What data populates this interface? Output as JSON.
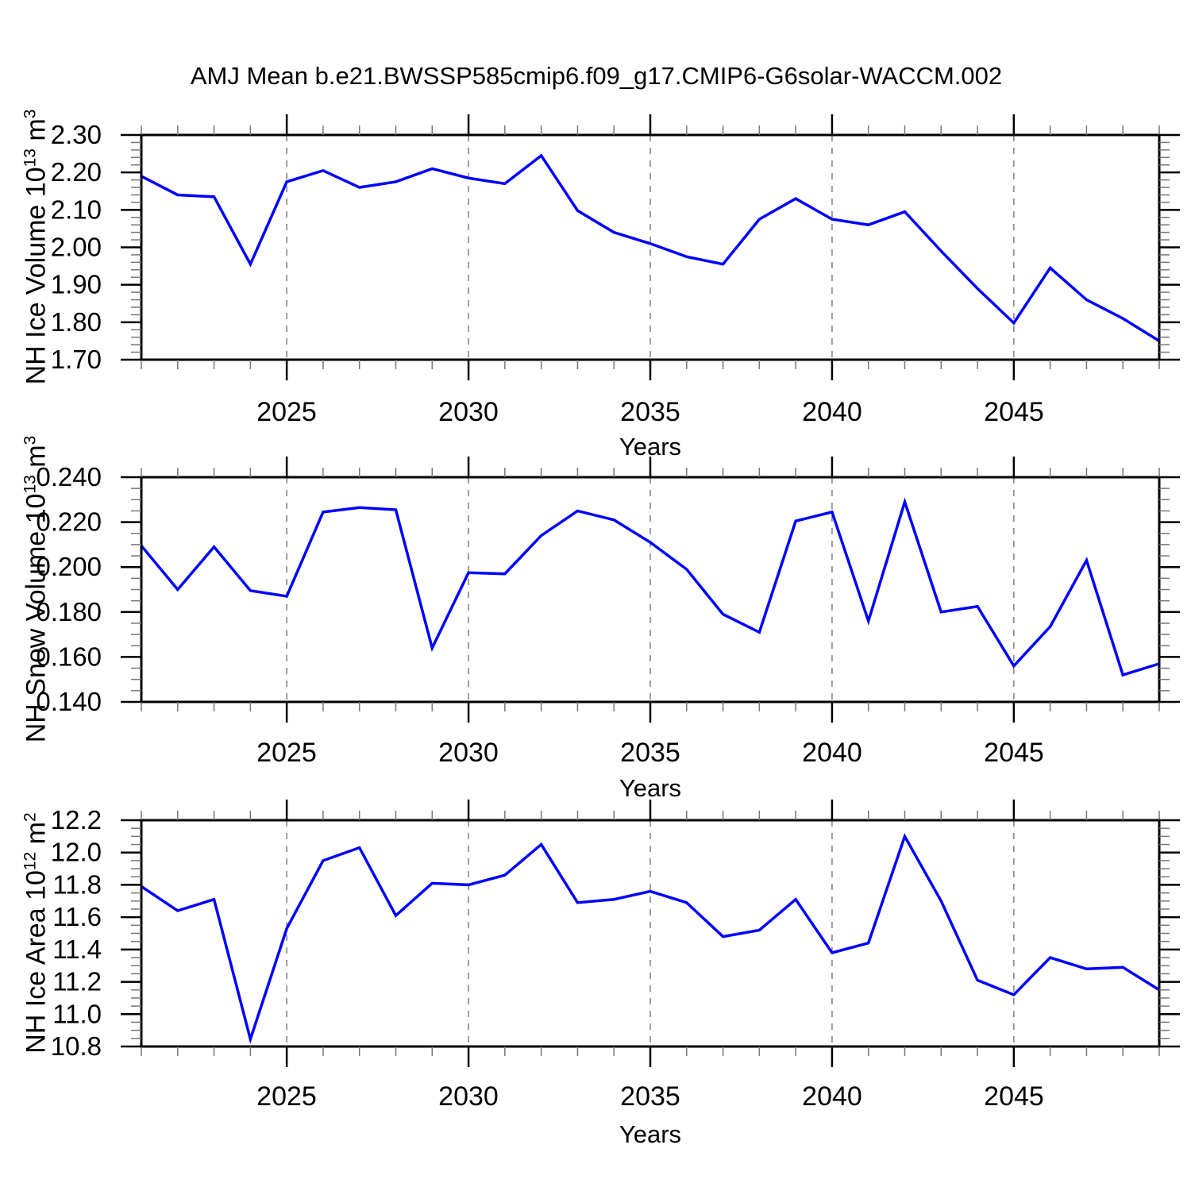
{
  "title": "AMJ Mean b.e21.BWSSP585cmip6.f09_g17.CMIP6-G6solar-WACCM.002",
  "xlabel": "Years",
  "x_tick_labels": [
    "2025",
    "2030",
    "2035",
    "2040",
    "2045"
  ],
  "line_color": "#0000ff",
  "grid_color": "#888888",
  "years": [
    2021,
    2022,
    2023,
    2024,
    2025,
    2026,
    2027,
    2028,
    2029,
    2030,
    2031,
    2032,
    2033,
    2034,
    2035,
    2036,
    2037,
    2038,
    2039,
    2040,
    2041,
    2042,
    2043,
    2044,
    2045,
    2046,
    2047,
    2048,
    2049
  ],
  "chart_data": [
    {
      "type": "line",
      "name": "nh-ice-volume",
      "ylabel": "NH Ice Volume 10^13 m^3",
      "ylabel_base": "NH Ice Volume 10",
      "ylabel_exp": "13",
      "ylabel_unit": " m",
      "ylabel_unit_exp": "3",
      "xlabel": "Years",
      "xlim": [
        2021,
        2049
      ],
      "xticks": [
        2025,
        2030,
        2035,
        2040,
        2045
      ],
      "grid": "dashed-vertical-at-xticks",
      "ylim": [
        1.7,
        2.3
      ],
      "ytick_step": 0.1,
      "yminor_step": 0.02,
      "ytick_labels": [
        "2.30",
        "2.20",
        "2.10",
        "2.00",
        "1.90",
        "1.80",
        "1.70"
      ],
      "values": [
        2.19,
        2.14,
        2.135,
        1.955,
        2.175,
        2.205,
        2.16,
        2.175,
        2.21,
        2.185,
        2.17,
        2.245,
        2.098,
        2.04,
        2.01,
        1.975,
        1.955,
        2.075,
        2.13,
        2.075,
        2.06,
        2.095,
        1.99,
        1.89,
        1.798,
        1.945,
        1.86,
        1.81,
        1.75
      ]
    },
    {
      "type": "line",
      "name": "nh-snow-volume",
      "ylabel": "NH Snow Volume 10^13 m^3",
      "ylabel_base": "NH Snow Volume 10",
      "ylabel_exp": "13",
      "ylabel_unit": " m",
      "ylabel_unit_exp": "3",
      "xlabel": "Years",
      "xlim": [
        2021,
        2049
      ],
      "xticks": [
        2025,
        2030,
        2035,
        2040,
        2045
      ],
      "grid": "dashed-vertical-at-xticks",
      "ylim": [
        0.14,
        0.24
      ],
      "ytick_step": 0.02,
      "yminor_step": 0.005,
      "ytick_labels": [
        "0.240",
        "0.220",
        "0.200",
        "0.180",
        "0.160",
        "0.140"
      ],
      "values": [
        0.2095,
        0.19,
        0.209,
        0.1895,
        0.187,
        0.2245,
        0.2265,
        0.2255,
        0.164,
        0.1975,
        0.197,
        0.214,
        0.225,
        0.221,
        0.211,
        0.199,
        0.179,
        0.171,
        0.2205,
        0.2245,
        0.176,
        0.229,
        0.18,
        0.1825,
        0.156,
        0.1735,
        0.203,
        0.152,
        0.157
      ]
    },
    {
      "type": "line",
      "name": "nh-ice-area",
      "ylabel": "NH Ice Area 10^12 m^2",
      "ylabel_base": "NH Ice Area 10",
      "ylabel_exp": "12",
      "ylabel_unit": " m",
      "ylabel_unit_exp": "2",
      "xlabel": "Years",
      "xlim": [
        2021,
        2049
      ],
      "xticks": [
        2025,
        2030,
        2035,
        2040,
        2045
      ],
      "grid": "dashed-vertical-at-xticks",
      "ylim": [
        10.8,
        12.2
      ],
      "ytick_step": 0.2,
      "yminor_step": 0.05,
      "ytick_labels": [
        "12.2",
        "12.0",
        "11.8",
        "11.6",
        "11.4",
        "11.2",
        "11.0",
        "10.8"
      ],
      "values": [
        11.79,
        11.64,
        11.71,
        10.845,
        11.53,
        11.95,
        12.03,
        11.61,
        11.81,
        11.8,
        11.86,
        12.05,
        11.69,
        11.71,
        11.76,
        11.69,
        11.48,
        11.52,
        11.71,
        11.38,
        11.44,
        12.1,
        11.7,
        11.21,
        11.12,
        11.35,
        11.28,
        11.29,
        11.15
      ]
    }
  ]
}
